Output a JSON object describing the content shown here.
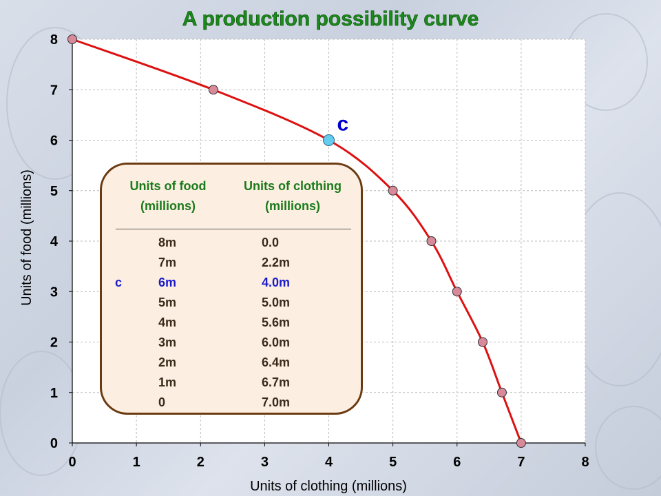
{
  "colors": {
    "curve": "#dd1111",
    "point_fill": "#d88a9a",
    "highlight_fill": "#66ccee",
    "title": "#1a8a1a",
    "table_text": "#1a7a1a",
    "table_border": "#6b3a10",
    "table_bg": "#fcefe2"
  },
  "chart_data": {
    "type": "line",
    "title": "A production possibility curve",
    "xlabel": "Units of clothing (millions)",
    "ylabel": "Units of food (millions)",
    "xlim": [
      0,
      8
    ],
    "ylim": [
      0,
      8
    ],
    "xticks": [
      "0",
      "1",
      "2",
      "3",
      "4",
      "5",
      "6",
      "7",
      "8"
    ],
    "yticks": [
      "0",
      "1",
      "2",
      "3",
      "4",
      "5",
      "6",
      "7",
      "8"
    ],
    "grid": true,
    "series": [
      {
        "x": [
          0.0,
          2.2,
          4.0,
          5.0,
          5.6,
          6.0,
          6.4,
          6.7,
          7.0
        ],
        "y": [
          8,
          7,
          6,
          5,
          4,
          3,
          2,
          1,
          0
        ]
      }
    ],
    "highlight": {
      "label": "c",
      "x": 4.0,
      "y": 6
    }
  },
  "table": {
    "food_header": "Units of food",
    "food_unit": "(millions)",
    "clothing_header": "Units of clothing",
    "clothing_unit": "(millions)",
    "rows": [
      {
        "tag": "",
        "food": "8m",
        "clothing": "0.0"
      },
      {
        "tag": "",
        "food": "7m",
        "clothing": "2.2m"
      },
      {
        "tag": "c",
        "food": "6m",
        "clothing": "4.0m"
      },
      {
        "tag": "",
        "food": "5m",
        "clothing": "5.0m"
      },
      {
        "tag": "",
        "food": "4m",
        "clothing": "5.6m"
      },
      {
        "tag": "",
        "food": "3m",
        "clothing": "6.0m"
      },
      {
        "tag": "",
        "food": "2m",
        "clothing": "6.4m"
      },
      {
        "tag": "",
        "food": "1m",
        "clothing": "6.7m"
      },
      {
        "tag": "",
        "food": "0",
        "clothing": "7.0m"
      }
    ]
  }
}
